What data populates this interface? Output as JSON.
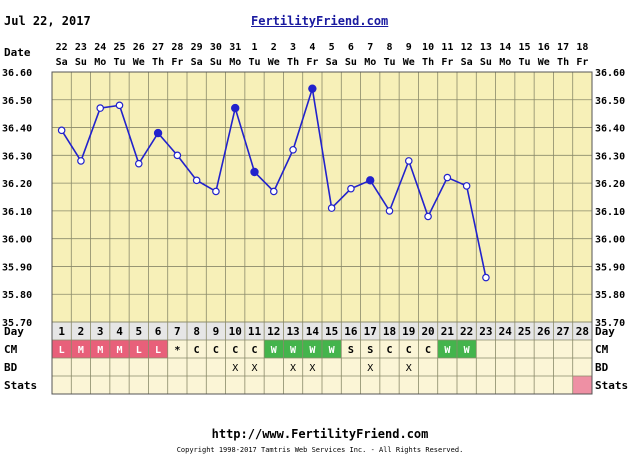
{
  "header": {
    "date": "Jul 22, 2017",
    "site": "FertilityFriend.com"
  },
  "footer": {
    "url": "http://www.FertilityFriend.com",
    "copyright": "Copyright 1998-2017 Tamtris Web Services Inc. - All Rights Reserved."
  },
  "row_labels": {
    "date": "Date",
    "day": "Day",
    "cm": "CM",
    "bd": "BD",
    "stats": "Stats"
  },
  "colors": {
    "plot_bg": "#f7f0b8",
    "table_bg": "#fbf5d6",
    "grid": "#8a8a6a",
    "line": "#2222cc",
    "cm_red": "#e8607a",
    "cm_green": "#44b44c",
    "stats_pink": "#ee90a4"
  },
  "chart_data": {
    "type": "line",
    "dates": [
      {
        "d": "22",
        "w": "Sa"
      },
      {
        "d": "23",
        "w": "Su"
      },
      {
        "d": "24",
        "w": "Mo"
      },
      {
        "d": "25",
        "w": "Tu"
      },
      {
        "d": "26",
        "w": "We"
      },
      {
        "d": "27",
        "w": "Th"
      },
      {
        "d": "28",
        "w": "Fr"
      },
      {
        "d": "29",
        "w": "Sa"
      },
      {
        "d": "30",
        "w": "Su"
      },
      {
        "d": "31",
        "w": "Mo"
      },
      {
        "d": "1",
        "w": "Tu"
      },
      {
        "d": "2",
        "w": "We"
      },
      {
        "d": "3",
        "w": "Th"
      },
      {
        "d": "4",
        "w": "Fr"
      },
      {
        "d": "5",
        "w": "Sa"
      },
      {
        "d": "6",
        "w": "Su"
      },
      {
        "d": "7",
        "w": "Mo"
      },
      {
        "d": "8",
        "w": "Tu"
      },
      {
        "d": "9",
        "w": "We"
      },
      {
        "d": "10",
        "w": "Th"
      },
      {
        "d": "11",
        "w": "Fr"
      },
      {
        "d": "12",
        "w": "Sa"
      },
      {
        "d": "13",
        "w": "Su"
      },
      {
        "d": "14",
        "w": "Mo"
      },
      {
        "d": "15",
        "w": "Tu"
      },
      {
        "d": "16",
        "w": "We"
      },
      {
        "d": "17",
        "w": "Th"
      },
      {
        "d": "18",
        "w": "Fr"
      }
    ],
    "days": [
      "1",
      "2",
      "3",
      "4",
      "5",
      "6",
      "7",
      "8",
      "9",
      "10",
      "11",
      "12",
      "13",
      "14",
      "15",
      "16",
      "17",
      "18",
      "19",
      "20",
      "21",
      "22",
      "23",
      "24",
      "25",
      "26",
      "27",
      "28"
    ],
    "temperatures": [
      36.39,
      36.28,
      36.47,
      36.48,
      36.27,
      36.38,
      36.3,
      36.21,
      36.17,
      36.47,
      36.24,
      36.17,
      36.32,
      36.54,
      36.11,
      36.18,
      36.21,
      36.1,
      36.28,
      36.08,
      36.22,
      36.19,
      35.86
    ],
    "filled_points": [
      false,
      false,
      false,
      false,
      false,
      true,
      false,
      false,
      false,
      true,
      true,
      false,
      false,
      true,
      false,
      false,
      true,
      false,
      false,
      false,
      false,
      false,
      false
    ],
    "yticks": [
      "35.70",
      "35.80",
      "35.90",
      "36.00",
      "36.10",
      "36.20",
      "36.30",
      "36.40",
      "36.50",
      "36.60"
    ],
    "ylim": [
      35.7,
      36.6
    ],
    "cm": [
      "L",
      "M",
      "M",
      "M",
      "L",
      "L",
      "*",
      "C",
      "C",
      "C",
      "C",
      "W",
      "W",
      "W",
      "W",
      "S",
      "S",
      "C",
      "C",
      "C",
      "W",
      "W",
      "",
      "",
      "",
      "",
      "",
      ""
    ],
    "bd": [
      "",
      "",
      "",
      "",
      "",
      "",
      "",
      "",
      "",
      "X",
      "X",
      "",
      "X",
      "X",
      "",
      "",
      "X",
      "",
      "X",
      "",
      "",
      "",
      "",
      "",
      "",
      "",
      "",
      ""
    ],
    "stats": [
      "",
      "",
      "",
      "",
      "",
      "",
      "",
      "",
      "",
      "",
      "",
      "",
      "",
      "",
      "",
      "",
      "",
      "",
      "",
      "",
      "",
      "",
      "",
      "",
      "",
      "",
      "",
      "flag"
    ],
    "grid": true
  }
}
